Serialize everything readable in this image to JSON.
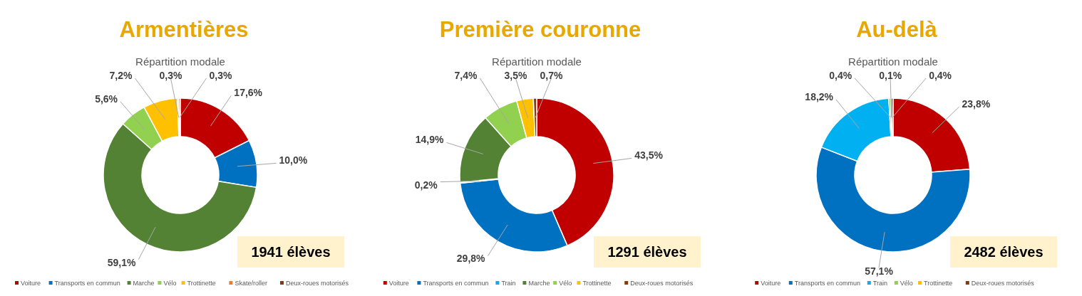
{
  "chart_data": [
    {
      "type": "donut",
      "title": "Armentières",
      "subtitle": "Répartition modale",
      "categories": [
        "Voiture",
        "Transports en commun",
        "Marche",
        "Vélo",
        "Trottinette",
        "Skate/roller",
        "Deux-roues motorisés"
      ],
      "values": [
        17.6,
        10.0,
        59.1,
        5.6,
        7.2,
        0.3,
        0.3
      ],
      "value_labels": [
        "17,6%",
        "10,0%",
        "59,1%",
        "5,6%",
        "7,2%",
        "0,3%",
        "0,3%"
      ],
      "colors": [
        "#c00000",
        "#0070c0",
        "#548235",
        "#92d050",
        "#ffc000",
        "#ed7d31",
        "#843c0c"
      ],
      "annotations": [
        "1941 élèves"
      ],
      "legend": "bottom"
    },
    {
      "type": "donut",
      "title": "Première couronne",
      "subtitle": "Répartition modale",
      "categories": [
        "Voiture",
        "Transports en commun",
        "Train",
        "Marche",
        "Vélo",
        "Trottinette",
        "Deux-roues motorisés"
      ],
      "values": [
        43.5,
        29.8,
        0.2,
        14.9,
        7.4,
        3.5,
        0.7
      ],
      "value_labels": [
        "43,5%",
        "29,8%",
        "0,2%",
        "14,9%",
        "7,4%",
        "3,5%",
        "0,7%"
      ],
      "colors": [
        "#c00000",
        "#0070c0",
        "#00b0f0",
        "#548235",
        "#92d050",
        "#ffc000",
        "#843c0c"
      ],
      "annotations": [
        "1291 élèves"
      ],
      "legend": "bottom"
    },
    {
      "type": "donut",
      "title": "Au-delà",
      "subtitle": "Répartition modale",
      "categories": [
        "Voiture",
        "Transports en commun",
        "Train",
        "Vélo",
        "Trottinette",
        "Deux-roues motorisés"
      ],
      "values": [
        23.8,
        57.1,
        18.2,
        0.4,
        0.1,
        0.4
      ],
      "value_labels": [
        "23,8%",
        "57,1%",
        "18,2%",
        "0,4%",
        "0,1%",
        "0,4%"
      ],
      "colors": [
        "#c00000",
        "#0070c0",
        "#00b0f0",
        "#92d050",
        "#ffc000",
        "#843c0c"
      ],
      "annotations": [
        "2482 élèves"
      ],
      "legend": "bottom"
    }
  ]
}
